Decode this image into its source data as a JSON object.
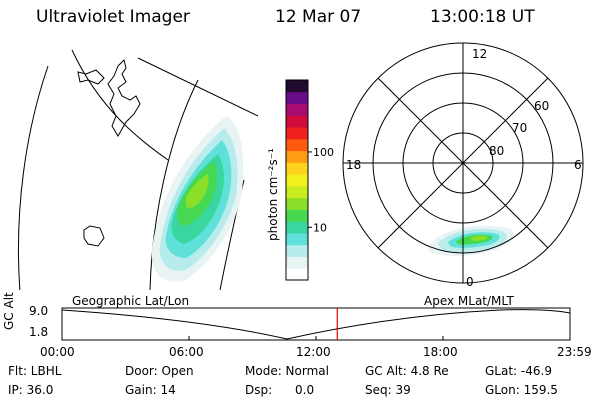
{
  "header": {
    "instrument": "Ultraviolet Imager",
    "date": "12 Mar 07",
    "time": "13:00:18 UT"
  },
  "colorbar": {
    "unit_label": "photon cm⁻²s⁻¹",
    "ticks": [
      {
        "value": 100,
        "label": "100"
      },
      {
        "value": 10,
        "label": "10"
      }
    ],
    "range": [
      2,
      900
    ],
    "scale": "log",
    "colors": [
      "#ffffff",
      "#e8f4f4",
      "#b8ecec",
      "#5fe0d8",
      "#3ad6a0",
      "#46d850",
      "#8ae028",
      "#c8ec20",
      "#f4f020",
      "#ffd21e",
      "#ff9c14",
      "#ff5a10",
      "#f0201c",
      "#d00c3a",
      "#a80c70",
      "#6a0c8a",
      "#200a30"
    ]
  },
  "polar": {
    "mlt_labels": {
      "top": "12",
      "left": "18",
      "right": "6",
      "bottom": "0"
    },
    "lat_labels": [
      "60",
      "70",
      "80"
    ]
  },
  "panel_titles": {
    "left": "Geographic Lat/Lon",
    "right": "Apex MLat/MLT"
  },
  "altitude_plot": {
    "y_label": "GC Alt",
    "y_ticks": [
      "9.0",
      "1.8"
    ],
    "x_ticks": [
      "00:00",
      "06:00",
      "12:00",
      "18:00",
      "23:59"
    ],
    "current_time_hours": 13.005,
    "marker_color": "#e00000"
  },
  "info": {
    "filter": "Flt: LBHL",
    "ip": "IP: 36.0",
    "door": "Door: Open",
    "gain": "Gain: 14",
    "mode": "Mode: Normal",
    "dsp": "Dsp:      0.0",
    "gc_alt": "GC Alt: 4.8 Re",
    "seq": "Seq: 39",
    "glat": "GLat: -46.9",
    "glon": "GLon: 159.5"
  }
}
